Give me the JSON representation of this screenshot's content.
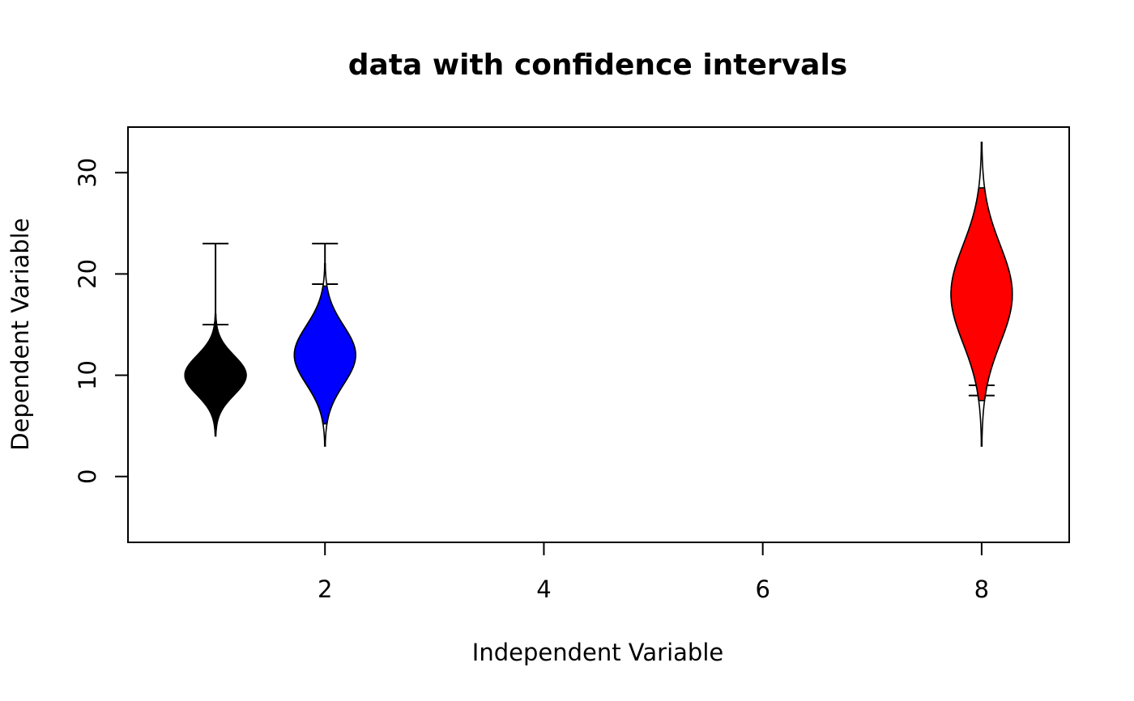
{
  "chart_data": {
    "type": "violin",
    "title": "data with confidence intervals",
    "xlabel": "Independent Variable",
    "ylabel": "Dependent Variable",
    "xlim": [
      0.2,
      8.8
    ],
    "ylim": [
      -6.5,
      34.5
    ],
    "x_ticks": [
      2,
      4,
      6,
      8
    ],
    "y_ticks": [
      0,
      10,
      20,
      30
    ],
    "grid": false,
    "violin_halfwidth_units": 0.28,
    "groups": [
      {
        "x": 1,
        "color": "#000000",
        "min": 4,
        "max": 16,
        "mode": 10,
        "ci_low": 4.3,
        "ci_high": 15.7,
        "whisker_low": 15,
        "whisker_high": 23
      },
      {
        "x": 2,
        "color": "#0000ff",
        "min": 3,
        "max": 21,
        "mode": 12,
        "ci_low": 5.2,
        "ci_high": 18.8,
        "whisker_low": 19,
        "whisker_high": 23
      },
      {
        "x": 8,
        "color": "#ff0000",
        "min": 3,
        "max": 33,
        "mode": 18,
        "ci_low": 7.5,
        "ci_high": 28.5,
        "whisker_low": 8,
        "whisker_high": 9
      }
    ]
  }
}
